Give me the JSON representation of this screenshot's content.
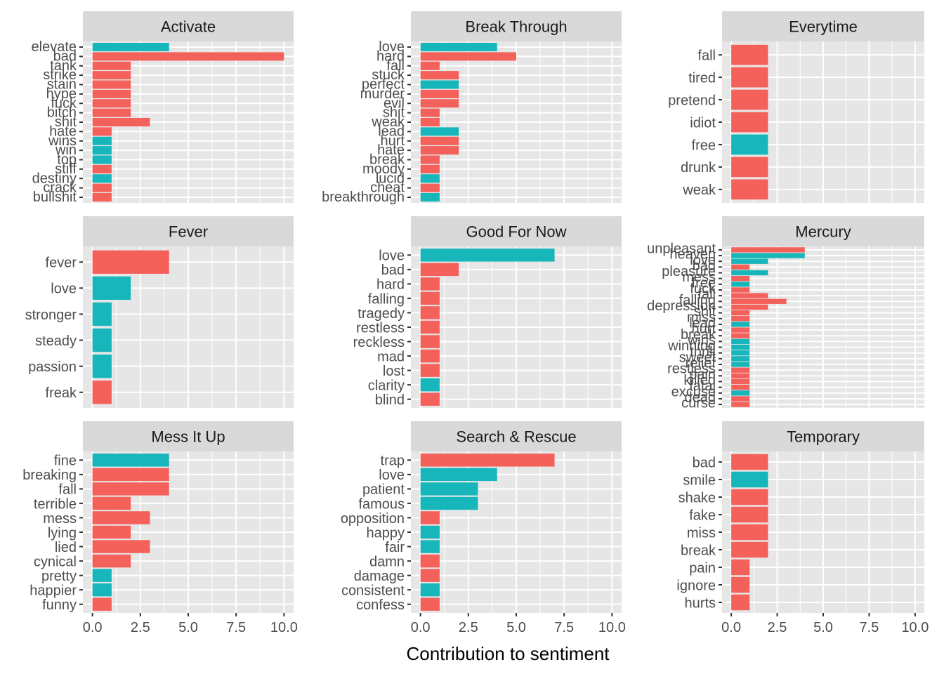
{
  "colors": {
    "positive": "#17B6BA",
    "negative": "#F4615B",
    "panel_bg": "#E6E6E6",
    "strip_bg": "#D9D9D9",
    "grid": "#FFFFFF"
  },
  "chart_data": {
    "type": "bar",
    "orientation": "horizontal",
    "xlabel": "Contribution to sentiment",
    "ylabel": "",
    "xlim": [
      0,
      10.5
    ],
    "x_ticks": [
      "0.0",
      "2.5",
      "5.0",
      "7.5",
      "10.0"
    ],
    "legend": "none",
    "panels": [
      {
        "title": "Activate",
        "categories": [
          "elevate",
          "bad",
          "tank",
          "strike",
          "stain",
          "hype",
          "fuck",
          "bitch",
          "shit",
          "hate",
          "wins",
          "win",
          "top",
          "stiff",
          "destiny",
          "crack",
          "bullshit"
        ],
        "values": [
          4,
          10,
          2,
          2,
          2,
          2,
          2,
          2,
          3,
          1,
          1,
          1,
          1,
          1,
          1,
          1,
          1
        ],
        "sentiment": [
          "positive",
          "negative",
          "negative",
          "negative",
          "negative",
          "negative",
          "negative",
          "negative",
          "negative",
          "negative",
          "positive",
          "positive",
          "positive",
          "negative",
          "positive",
          "negative",
          "negative"
        ]
      },
      {
        "title": "Break Through",
        "categories": [
          "love",
          "hard",
          "fall",
          "stuck",
          "perfect",
          "murder",
          "evil",
          "shit",
          "weak",
          "lead",
          "hurt",
          "hate",
          "break",
          "moody",
          "lucid",
          "cheat",
          "breakthrough"
        ],
        "values": [
          4,
          5,
          1,
          2,
          2,
          2,
          2,
          1,
          1,
          2,
          2,
          2,
          1,
          1,
          1,
          1,
          1
        ],
        "sentiment": [
          "positive",
          "negative",
          "negative",
          "negative",
          "positive",
          "negative",
          "negative",
          "negative",
          "negative",
          "positive",
          "negative",
          "negative",
          "negative",
          "negative",
          "positive",
          "negative",
          "positive"
        ]
      },
      {
        "title": "Everytime",
        "categories": [
          "fall",
          "tired",
          "pretend",
          "idiot",
          "free",
          "drunk",
          "weak"
        ],
        "values": [
          2,
          2,
          2,
          2,
          2,
          2,
          2
        ],
        "sentiment": [
          "negative",
          "negative",
          "negative",
          "negative",
          "positive",
          "negative",
          "negative"
        ]
      },
      {
        "title": "Fever",
        "categories": [
          "fever",
          "love",
          "stronger",
          "steady",
          "passion",
          "freak"
        ],
        "values": [
          4,
          2,
          1,
          1,
          1,
          1
        ],
        "sentiment": [
          "negative",
          "positive",
          "positive",
          "positive",
          "positive",
          "negative"
        ]
      },
      {
        "title": "Good For Now",
        "categories": [
          "love",
          "bad",
          "hard",
          "falling",
          "tragedy",
          "restless",
          "reckless",
          "mad",
          "lost",
          "clarity",
          "blind"
        ],
        "values": [
          7,
          2,
          1,
          1,
          1,
          1,
          1,
          1,
          1,
          1,
          1
        ],
        "sentiment": [
          "positive",
          "negative",
          "negative",
          "negative",
          "negative",
          "negative",
          "negative",
          "negative",
          "negative",
          "positive",
          "negative"
        ]
      },
      {
        "title": "Mercury",
        "categories": [
          "unpleasant",
          "heaven",
          "love",
          "bad",
          "pleasure",
          "mess",
          "free",
          "fuck",
          "fall",
          "falling",
          "depression",
          "shit",
          "miss",
          "lead",
          "hurt",
          "break",
          "wins",
          "winning",
          "thrill",
          "sweet",
          "relief",
          "restless",
          "pain",
          "killed",
          "fatal",
          "excuse",
          "dead",
          "curse"
        ],
        "values": [
          4,
          4,
          2,
          1,
          2,
          1,
          1,
          1,
          2,
          3,
          2,
          1,
          1,
          1,
          1,
          1,
          1,
          1,
          1,
          1,
          1,
          1,
          1,
          1,
          1,
          1,
          1,
          1
        ],
        "sentiment": [
          "negative",
          "positive",
          "positive",
          "negative",
          "positive",
          "negative",
          "positive",
          "negative",
          "negative",
          "negative",
          "negative",
          "negative",
          "negative",
          "positive",
          "negative",
          "negative",
          "positive",
          "positive",
          "positive",
          "positive",
          "positive",
          "negative",
          "negative",
          "negative",
          "negative",
          "positive",
          "negative",
          "negative"
        ]
      },
      {
        "title": "Mess It Up",
        "categories": [
          "fine",
          "breaking",
          "fall",
          "terrible",
          "mess",
          "lying",
          "lied",
          "cynical",
          "pretty",
          "happier",
          "funny"
        ],
        "values": [
          4,
          4,
          4,
          2,
          3,
          2,
          3,
          2,
          1,
          1,
          1
        ],
        "sentiment": [
          "positive",
          "negative",
          "negative",
          "negative",
          "negative",
          "negative",
          "negative",
          "negative",
          "positive",
          "positive",
          "negative"
        ]
      },
      {
        "title": "Search & Rescue",
        "categories": [
          "trap",
          "love",
          "patient",
          "famous",
          "opposition",
          "happy",
          "fair",
          "damn",
          "damage",
          "consistent",
          "confess"
        ],
        "values": [
          7,
          4,
          3,
          3,
          1,
          1,
          1,
          1,
          1,
          1,
          1
        ],
        "sentiment": [
          "negative",
          "positive",
          "positive",
          "positive",
          "negative",
          "positive",
          "positive",
          "negative",
          "negative",
          "positive",
          "negative"
        ]
      },
      {
        "title": "Temporary",
        "categories": [
          "bad",
          "smile",
          "shake",
          "fake",
          "miss",
          "break",
          "pain",
          "ignore",
          "hurts"
        ],
        "values": [
          2,
          2,
          2,
          2,
          2,
          2,
          1,
          1,
          1
        ],
        "sentiment": [
          "negative",
          "positive",
          "negative",
          "negative",
          "negative",
          "negative",
          "negative",
          "negative",
          "negative"
        ]
      }
    ]
  }
}
